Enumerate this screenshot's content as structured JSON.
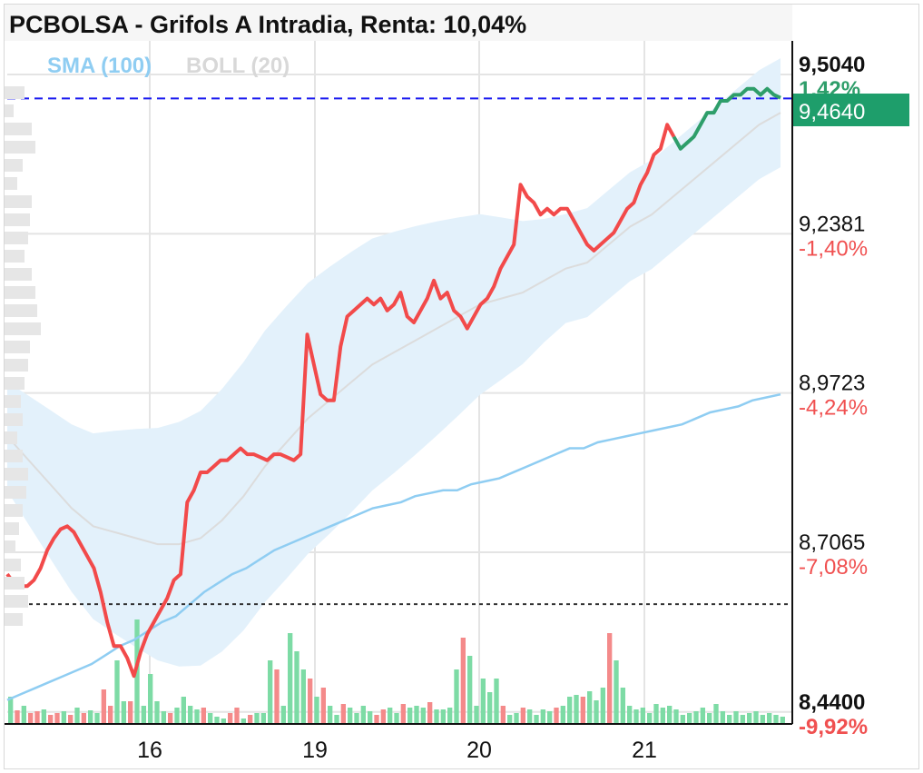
{
  "header": {
    "title": "PCBOLSA - Grifols A Intradia, Renta: 10,04%"
  },
  "legend": {
    "sma": "SMA (100)",
    "boll": "BOLL (20)"
  },
  "colors": {
    "price_up": "#2e9e6a",
    "price_down": "#f24a4a",
    "sma": "#8fcdf2",
    "boll_fill": "#e3f1fb",
    "boll_mid": "#dcdcdc",
    "ref_line": "#1a1af0",
    "vol_up": "#7ddba5",
    "vol_down": "#f48a8a",
    "price_tag_bg": "#1e9e6b",
    "pct_neg": "#f05050",
    "grid": "#e4e4e4",
    "ref_hidden_pct": "#2e9e6a"
  },
  "price_tag": {
    "value": "9,4640",
    "hidden_pct": "1,42%"
  },
  "chart_data": {
    "type": "line",
    "title": "PCBOLSA - Grifols A Intradia, Renta: 10,04%",
    "ylim": [
      8.42,
      9.56
    ],
    "x_ticks": [
      "16",
      "19",
      "20",
      "21"
    ],
    "y_ticks": [
      {
        "value": "9,5040",
        "pct": "1,42%",
        "bold": true
      },
      {
        "value": "9,2381",
        "pct": "-1,40%",
        "bold": false
      },
      {
        "value": "8,9723",
        "pct": "-4,24%",
        "bold": false
      },
      {
        "value": "8,7065",
        "pct": "-7,08%",
        "bold": false
      },
      {
        "value": "8,4400",
        "pct": "-9,92%",
        "bold": true
      }
    ],
    "reference_price": 9.464,
    "prev_close": 8.62,
    "price_gain_start_index": 0,
    "series": [
      {
        "name": "Precio",
        "values": [
          8.67,
          8.655,
          8.65,
          8.65,
          8.66,
          8.68,
          8.71,
          8.73,
          8.745,
          8.75,
          8.74,
          8.72,
          8.7,
          8.68,
          8.64,
          8.59,
          8.55,
          8.55,
          8.53,
          8.5,
          8.54,
          8.57,
          8.59,
          8.61,
          8.63,
          8.66,
          8.67,
          8.79,
          8.81,
          8.84,
          8.84,
          8.85,
          8.86,
          8.86,
          8.87,
          8.88,
          8.87,
          8.87,
          8.865,
          8.86,
          8.87,
          8.87,
          8.865,
          8.86,
          8.87,
          9.07,
          9.02,
          8.97,
          8.96,
          8.96,
          9.05,
          9.1,
          9.11,
          9.12,
          9.13,
          9.12,
          9.13,
          9.11,
          9.12,
          9.14,
          9.1,
          9.09,
          9.11,
          9.13,
          9.16,
          9.13,
          9.14,
          9.11,
          9.1,
          9.08,
          9.1,
          9.12,
          9.13,
          9.15,
          9.18,
          9.2,
          9.22,
          9.32,
          9.3,
          9.29,
          9.27,
          9.28,
          9.27,
          9.28,
          9.28,
          9.26,
          9.24,
          9.22,
          9.21,
          9.22,
          9.23,
          9.24,
          9.26,
          9.28,
          9.29,
          9.32,
          9.34,
          9.37,
          9.38,
          9.42,
          9.4,
          9.38,
          9.39,
          9.4,
          9.42,
          9.44,
          9.44,
          9.46,
          9.46,
          9.47,
          9.47,
          9.48,
          9.48,
          9.47,
          9.48,
          9.47,
          9.465
        ]
      },
      {
        "name": "SMA (100)",
        "values": [
          8.46,
          8.47,
          8.48,
          8.49,
          8.5,
          8.51,
          8.52,
          8.535,
          8.55,
          8.56,
          8.575,
          8.59,
          8.6,
          8.62,
          8.64,
          8.655,
          8.67,
          8.68,
          8.695,
          8.71,
          8.72,
          8.73,
          8.74,
          8.75,
          8.76,
          8.77,
          8.78,
          8.785,
          8.79,
          8.8,
          8.805,
          8.81,
          8.81,
          8.82,
          8.825,
          8.83,
          8.84,
          8.85,
          8.86,
          8.87,
          8.88,
          8.88,
          8.89,
          8.895,
          8.9,
          8.905,
          8.91,
          8.915,
          8.92,
          8.93,
          8.94,
          8.945,
          8.95,
          8.96,
          8.965,
          8.97
        ]
      },
      {
        "name": "BOLL (20)",
        "values": [
          8.9,
          8.86,
          8.82,
          8.78,
          8.75,
          8.74,
          8.73,
          8.72,
          8.72,
          8.73,
          8.76,
          8.8,
          8.85,
          8.89,
          8.93,
          8.96,
          8.99,
          9.02,
          9.04,
          9.06,
          9.08,
          9.1,
          9.12,
          9.13,
          9.14,
          9.16,
          9.18,
          9.19,
          9.22,
          9.25,
          9.27,
          9.3,
          9.33,
          9.36,
          9.39,
          9.42,
          9.44
        ]
      }
    ],
    "volume": {
      "up_down": "u,d,u,d,d,u,d,d,u,d,u,d,u,u,d,d,u,u,d,u,u,u,u,u,d,u,u,u,u,d,u,u,u,d,d,u,d,u,u,u,d,u,u,u,u,d,u,d,u,u,d,u,u,u,u,d,d,u,u,d,u,u,u,d,u,u,u,u,d,u,u,u,u,u,d,u,u,d,u,u,u,u,d,u,u,u,d,u,u,u,d,u,u,u,u,u,u,u,u,u,u,u,u,u,u,u,u,u,u,u,u,u,u,u,u,u,u",
      "values": [
        30,
        15,
        20,
        12,
        14,
        16,
        10,
        12,
        14,
        10,
        18,
        12,
        15,
        12,
        38,
        20,
        70,
        25,
        25,
        115,
        20,
        55,
        25,
        14,
        12,
        18,
        30,
        20,
        16,
        18,
        12,
        8,
        6,
        12,
        18,
        6,
        10,
        12,
        12,
        70,
        60,
        20,
        100,
        80,
        60,
        50,
        30,
        40,
        20,
        10,
        22,
        18,
        12,
        20,
        14,
        10,
        16,
        18,
        12,
        22,
        18,
        20,
        18,
        24,
        16,
        16,
        18,
        60,
        95,
        75,
        20,
        50,
        35,
        50,
        20,
        10,
        12,
        18,
        16,
        10,
        16,
        14,
        18,
        20,
        30,
        32,
        30,
        36,
        26,
        40,
        100,
        70,
        40,
        20,
        16,
        18,
        12,
        22,
        18,
        20,
        16,
        10,
        12,
        14,
        18,
        12,
        22,
        14,
        10,
        14,
        10,
        12,
        14,
        10,
        12,
        10,
        8
      ]
    }
  }
}
